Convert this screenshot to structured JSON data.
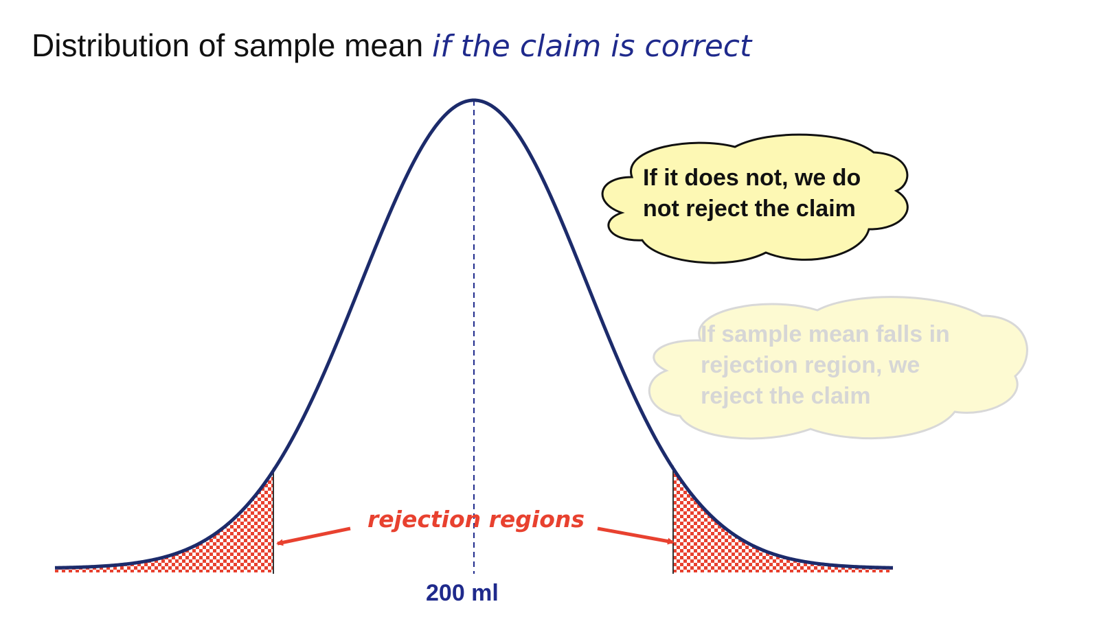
{
  "title": {
    "prefix": "Distribution of sample mean ",
    "highlight": "if the claim is correct"
  },
  "mean_label": "200 ml",
  "rejection_label": "rejection regions",
  "cloud_not_reject": {
    "line1": "If it does not, we do",
    "line2": "not reject the claim"
  },
  "cloud_reject": {
    "line1": "If sample mean falls in",
    "line2": "rejection region, we",
    "line3": "reject the claim"
  },
  "colors": {
    "curve": "#1c2b6b",
    "rejection": "#e8412f",
    "title_highlight": "#1f2a8c",
    "cloud_active_fill": "#fdf8b4",
    "cloud_faded_fill": "#fdfad2",
    "cloud_faded_text": "#d6d6d6"
  },
  "icons": {
    "thought_cloud": "cloud-shape",
    "arrow": "arrow-icon"
  }
}
